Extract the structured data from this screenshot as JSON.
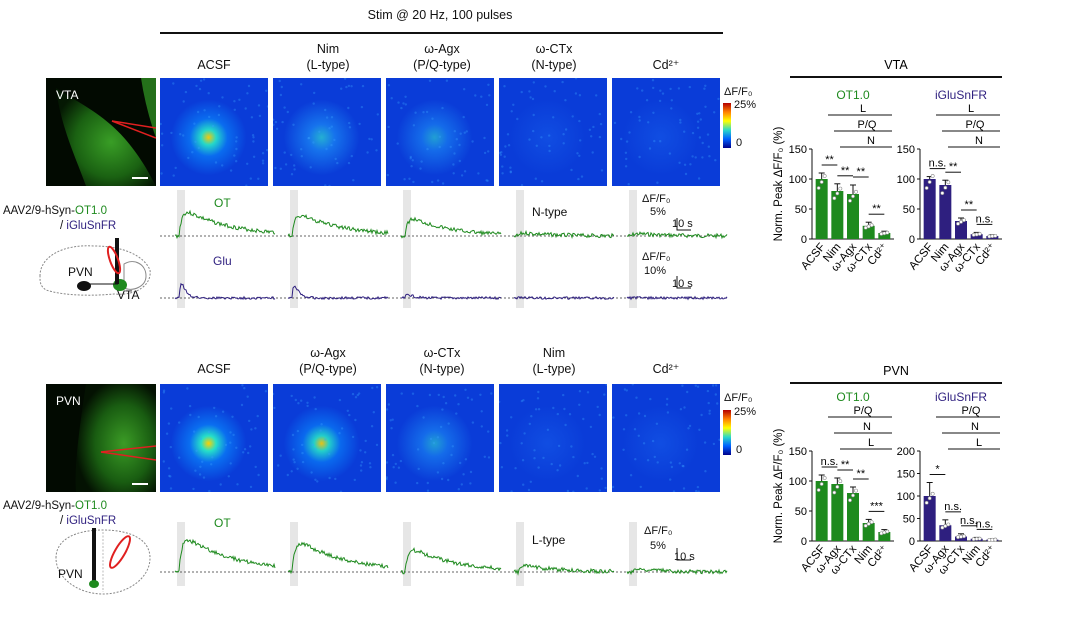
{
  "stim_label": "Stim @ 20 Hz, 100 pulses",
  "top": {
    "region": "VTA",
    "columns": [
      {
        "name": "ACSF",
        "sub": ""
      },
      {
        "name": "Nim",
        "sub": "(L-type)"
      },
      {
        "name": "ω-Agx",
        "sub": "(P/Q-type)"
      },
      {
        "name": "ω-CTx",
        "sub": "(N-type)"
      },
      {
        "name": "Cd²⁺",
        "sub": ""
      }
    ],
    "colorbar": {
      "title": "ΔF/F₀",
      "max": "25%",
      "min": "0"
    },
    "virus": {
      "prefix": "AAV2/9-hSyn-",
      "ot": "OT1.0",
      "sep": "/ ",
      "glu": "iGluSnFR"
    },
    "trace_labels": {
      "ot": "OT",
      "glu": "Glu",
      "blocked": "N-type"
    },
    "scale_ot": {
      "title": "ΔF/F₀",
      "y": "5%",
      "x": "10 s"
    },
    "scale_glu": {
      "title": "ΔF/F₀",
      "y": "10%",
      "x": "10 s"
    },
    "schematic_labels": [
      "PVN",
      "VTA"
    ]
  },
  "bottom": {
    "region": "PVN",
    "columns": [
      {
        "name": "ACSF",
        "sub": ""
      },
      {
        "name": "ω-Agx",
        "sub": "(P/Q-type)"
      },
      {
        "name": "ω-CTx",
        "sub": "(N-type)"
      },
      {
        "name": "Nim",
        "sub": "(L-type)"
      },
      {
        "name": "Cd²⁺",
        "sub": ""
      }
    ],
    "colorbar": {
      "title": "ΔF/F₀",
      "max": "25%",
      "min": "0"
    },
    "virus": {
      "prefix": "AAV2/9-hSyn-",
      "ot": "OT1.0",
      "sep": "/ ",
      "glu": "iGluSnFR"
    },
    "trace_labels": {
      "ot": "OT",
      "blocked": "L-type"
    },
    "scale_ot": {
      "title": "ΔF/F₀",
      "y": "5%",
      "x": "10 s"
    },
    "schematic_labels": [
      "PVN"
    ]
  },
  "chart_data": [
    {
      "type": "bar",
      "title": "VTA",
      "subtitle": "OT1.0",
      "ylabel": "Norm. Peak ΔF/F₀ (%)",
      "categories": [
        "ACSF",
        "Nim",
        "ω-Agx",
        "ω-CTx",
        "Cd²⁺"
      ],
      "values": [
        100,
        80,
        75,
        22,
        10
      ],
      "errors": [
        10,
        12,
        15,
        6,
        3
      ],
      "ylim": [
        0,
        150
      ],
      "yticks": [
        0,
        50,
        100,
        150
      ],
      "color": "#1e8a1e",
      "brackets": [
        "L",
        "P/Q",
        "N"
      ],
      "sig": [
        "**",
        "**",
        "**",
        "**"
      ]
    },
    {
      "type": "bar",
      "title": "VTA",
      "subtitle": "iGluSnFR",
      "ylabel": "",
      "categories": [
        "ACSF",
        "Nim",
        "ω-Agx",
        "ω-CTx",
        "Cd²⁺"
      ],
      "values": [
        100,
        90,
        30,
        8,
        5
      ],
      "errors": [
        4,
        8,
        5,
        3,
        2
      ],
      "ylim": [
        0,
        150
      ],
      "yticks": [
        0,
        50,
        100,
        150
      ],
      "color": "#2e1f7f",
      "brackets": [
        "L",
        "P/Q",
        "N"
      ],
      "sig": [
        "n.s.",
        "**",
        "**",
        "n.s."
      ]
    },
    {
      "type": "bar",
      "title": "PVN",
      "subtitle": "OT1.0",
      "ylabel": "Norm. Peak ΔF/F₀ (%)",
      "categories": [
        "ACSF",
        "ω-Agx",
        "ω-CTx",
        "Nim",
        "Cd²⁺"
      ],
      "values": [
        100,
        95,
        80,
        30,
        15
      ],
      "errors": [
        10,
        10,
        10,
        6,
        4
      ],
      "ylim": [
        0,
        150
      ],
      "yticks": [
        0,
        50,
        100,
        150
      ],
      "color": "#1e8a1e",
      "brackets": [
        "P/Q",
        "N",
        "L"
      ],
      "sig": [
        "n.s.",
        "**",
        "**",
        "***"
      ]
    },
    {
      "type": "bar",
      "title": "PVN",
      "subtitle": "iGluSnFR",
      "ylabel": "",
      "categories": [
        "ACSF",
        "ω-Agx",
        "ω-CTx",
        "Nim",
        "Cd²⁺"
      ],
      "values": [
        100,
        35,
        10,
        5,
        3
      ],
      "errors": [
        30,
        12,
        6,
        3,
        2
      ],
      "ylim": [
        0,
        200
      ],
      "yticks": [
        0,
        50,
        100,
        150,
        200
      ],
      "color": "#2e1f7f",
      "brackets": [
        "P/Q",
        "N",
        "L"
      ],
      "sig": [
        "*",
        "n.s.",
        "n.s.",
        "n.s."
      ]
    }
  ]
}
